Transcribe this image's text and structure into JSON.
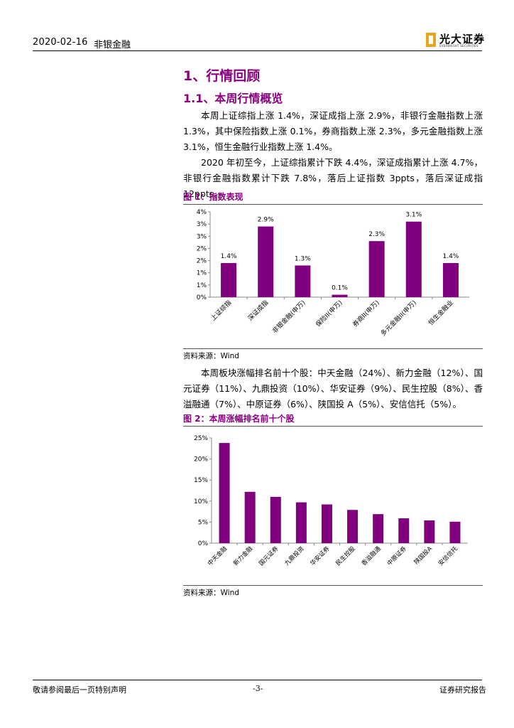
{
  "header": {
    "date": "2020-02-16",
    "sector": "非银金融",
    "logo_text": "光大证券",
    "logo_sub": "EVERBRIGHT SECURITIES"
  },
  "section": {
    "title": "1、行情回顾",
    "subtitle": "1.1、本周行情概览"
  },
  "paragraphs": [
    "本周上证综指上涨 1.4%，深证成指上涨 2.9%，非银行金融指数上涨 1.3%，其中保险指数上涨 0.1%，券商指数上涨 2.3%，多元金融指数上涨 3.1%，恒生金融行业指数上涨 1.4%。",
    "2020 年初至今，上证综指累计下跌 4.4%，深证成指累计上涨 4.7%，非银行金融指数累计下跌 7.8%，落后上证指数 3ppts，落后深证成指 12ppts。",
    "本周板块涨幅排名前十个股：中天金融（24%）、新力金融（12%）、国元证券（11%）、九鼎投资（10%）、华安证券（9%）、民生控股（8%）、香溢融通（7%）、中原证券（6%）、陕国投 A（5%）、安信信托（5%）。"
  ],
  "figures": [
    {
      "title": "图 1：指数表现",
      "source": "资料来源：Wind"
    },
    {
      "title": "图 2：本周涨幅排名前十个股",
      "source": "资料来源：Wind"
    }
  ],
  "colors": {
    "accent": "#8a007e",
    "bar": "#800080"
  },
  "chart_data": [
    {
      "type": "bar",
      "categories": [
        "上证综指",
        "深证成指",
        "非银金融(申万)",
        "保险II(申万)",
        "券商II(申万)",
        "多元金融II(申万)",
        "恒生金融业"
      ],
      "values": [
        1.4,
        2.9,
        1.3,
        0.1,
        2.3,
        3.1,
        1.4
      ],
      "data_labels": [
        "1.4%",
        "2.9%",
        "1.3%",
        "0.1%",
        "2.3%",
        "3.1%",
        "1.4%"
      ],
      "ytick_labels": [
        "0%",
        "1%",
        "1%",
        "2%",
        "2%",
        "3%",
        "3%",
        "4%"
      ],
      "ylim": [
        0,
        3.5
      ],
      "grid": false
    },
    {
      "type": "bar",
      "categories": [
        "中天金融",
        "新力金融",
        "国元证券",
        "九鼎投资",
        "华安证券",
        "民生控股",
        "香溢融通",
        "中原证券",
        "陕国投A",
        "安信信托"
      ],
      "values": [
        23.8,
        12.2,
        11.0,
        9.7,
        9.2,
        7.9,
        6.9,
        5.9,
        5.4,
        5.1
      ],
      "ytick_labels": [
        "0%",
        "5%",
        "10%",
        "15%",
        "20%",
        "25%"
      ],
      "ylim": [
        0,
        25
      ],
      "grid": false
    }
  ],
  "footer": {
    "left": "敬请参阅最后一页特别声明",
    "page": "-3-",
    "right": "证券研究报告"
  }
}
